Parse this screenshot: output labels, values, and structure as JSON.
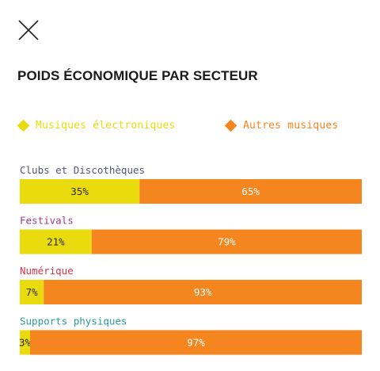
{
  "header": {
    "close_icon": "close-icon"
  },
  "title": "POIDS ÉCONOMIQUE PAR SECTEUR",
  "colors": {
    "electronic": "#eadb0e",
    "other": "#f4851f",
    "label_default": "#555577"
  },
  "chart_data": {
    "type": "bar",
    "orientation": "horizontal",
    "stacked": true,
    "normalized": true,
    "title": "POIDS ÉCONOMIQUE PAR SECTEUR",
    "legend_position": "top",
    "series": [
      {
        "name": "Musiques électroniques",
        "color": "#eadb0e"
      },
      {
        "name": "Autres musiques",
        "color": "#f4851f"
      }
    ],
    "categories": [
      {
        "label": "Clubs et Discothèques",
        "label_color": "#555577",
        "values": [
          35,
          65
        ],
        "value_labels": [
          "35%",
          "65%"
        ]
      },
      {
        "label": "Festivals",
        "label_color": "#9b3d8f",
        "values": [
          21,
          79
        ],
        "value_labels": [
          "21%",
          "79%"
        ]
      },
      {
        "label": "Numérique",
        "label_color": "#d8344a",
        "values": [
          7,
          93
        ],
        "value_labels": [
          "7%",
          "93%"
        ]
      },
      {
        "label": "Supports physiques",
        "label_color": "#2a9a96",
        "values": [
          3,
          97
        ],
        "value_labels": [
          "3%",
          "97%"
        ]
      }
    ],
    "xlim": [
      0,
      100
    ]
  }
}
